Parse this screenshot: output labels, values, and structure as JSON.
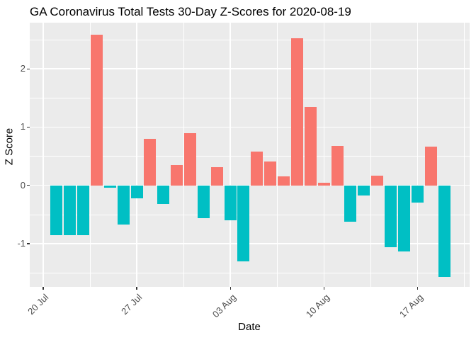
{
  "title": "GA Coronavirus Total Tests 30-Day Z-Scores for 2020-08-19",
  "chart_data": {
    "type": "bar",
    "title": "GA Coronavirus Total Tests 30-Day Z-Scores for 2020-08-19",
    "xlabel": "Date",
    "ylabel": "Z Score",
    "legend": "none",
    "grid": "major and minor white gridlines on gray panel",
    "ylim": [
      -1.74,
      2.79
    ],
    "y_major_ticks": [
      2,
      1,
      0,
      -1
    ],
    "y_minor_ticks": [
      2.5,
      1.5,
      0.5,
      -0.5,
      -1.5
    ],
    "x_ticks": [
      {
        "label": "20 Jul",
        "day_offset": -1
      },
      {
        "label": "27 Jul",
        "day_offset": 6
      },
      {
        "label": "03 Aug",
        "day_offset": 13
      },
      {
        "label": "10 Aug",
        "day_offset": 20
      },
      {
        "label": "17 Aug",
        "day_offset": 27
      }
    ],
    "x_minor_day_offsets": [
      2.5,
      9.5,
      16.5,
      23.5,
      30.5
    ],
    "dates": [
      "2020-07-21",
      "2020-07-22",
      "2020-07-23",
      "2020-07-24",
      "2020-07-25",
      "2020-07-26",
      "2020-07-27",
      "2020-07-28",
      "2020-07-29",
      "2020-07-30",
      "2020-07-31",
      "2020-08-01",
      "2020-08-02",
      "2020-08-03",
      "2020-08-04",
      "2020-08-05",
      "2020-08-06",
      "2020-08-07",
      "2020-08-08",
      "2020-08-09",
      "2020-08-10",
      "2020-08-11",
      "2020-08-12",
      "2020-08-13",
      "2020-08-14",
      "2020-08-15",
      "2020-08-16",
      "2020-08-17",
      "2020-08-18",
      "2020-08-19"
    ],
    "values": [
      -0.85,
      -0.85,
      -0.85,
      2.58,
      -0.04,
      -0.67,
      -0.22,
      0.8,
      -0.32,
      0.35,
      0.9,
      -0.56,
      0.31,
      -0.6,
      -1.3,
      0.58,
      0.41,
      0.16,
      2.52,
      1.35,
      0.04,
      0.68,
      -0.62,
      -0.17,
      0.17,
      -1.06,
      -1.13,
      -0.3,
      0.66,
      -1.57
    ],
    "positive_color": "#F8766D",
    "negative_color": "#00BFC4",
    "panel_bg": "#EBEBEB",
    "grid_color": "#FFFFFF",
    "tick_label_color": "#4D4D4D",
    "tick_mark_color": "#333333",
    "axis_title_color": "#000000"
  }
}
